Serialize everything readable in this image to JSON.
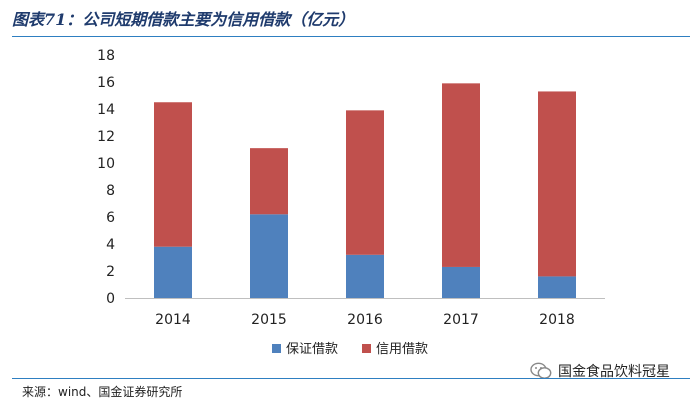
{
  "header": {
    "figure_label": "图表71：",
    "title": "公司短期借款主要为信用借款（亿元）"
  },
  "footer": {
    "source": "来源：wind、国金证券研究所",
    "brand": "国金食品饮料冠星",
    "brand_icon": "wechat-icon"
  },
  "colors": {
    "rule": "#2e7fc1",
    "series_guaranteed": "#4f81bd",
    "series_credit": "#c0504d",
    "axis": "#bfbfbf"
  },
  "chart_data": {
    "type": "bar",
    "stacked": true,
    "categories": [
      "2014",
      "2015",
      "2016",
      "2017",
      "2018"
    ],
    "series": [
      {
        "name": "保证借款",
        "values": [
          3.8,
          6.2,
          3.2,
          2.3,
          1.6
        ]
      },
      {
        "name": "信用借款",
        "values": [
          10.7,
          4.9,
          10.7,
          13.6,
          13.7
        ]
      }
    ],
    "ylim": [
      0,
      18
    ],
    "yticks": [
      0,
      2,
      4,
      6,
      8,
      10,
      12,
      14,
      16,
      18
    ],
    "grid": false,
    "legend": "bottom",
    "title": "",
    "xlabel": "",
    "ylabel": ""
  }
}
